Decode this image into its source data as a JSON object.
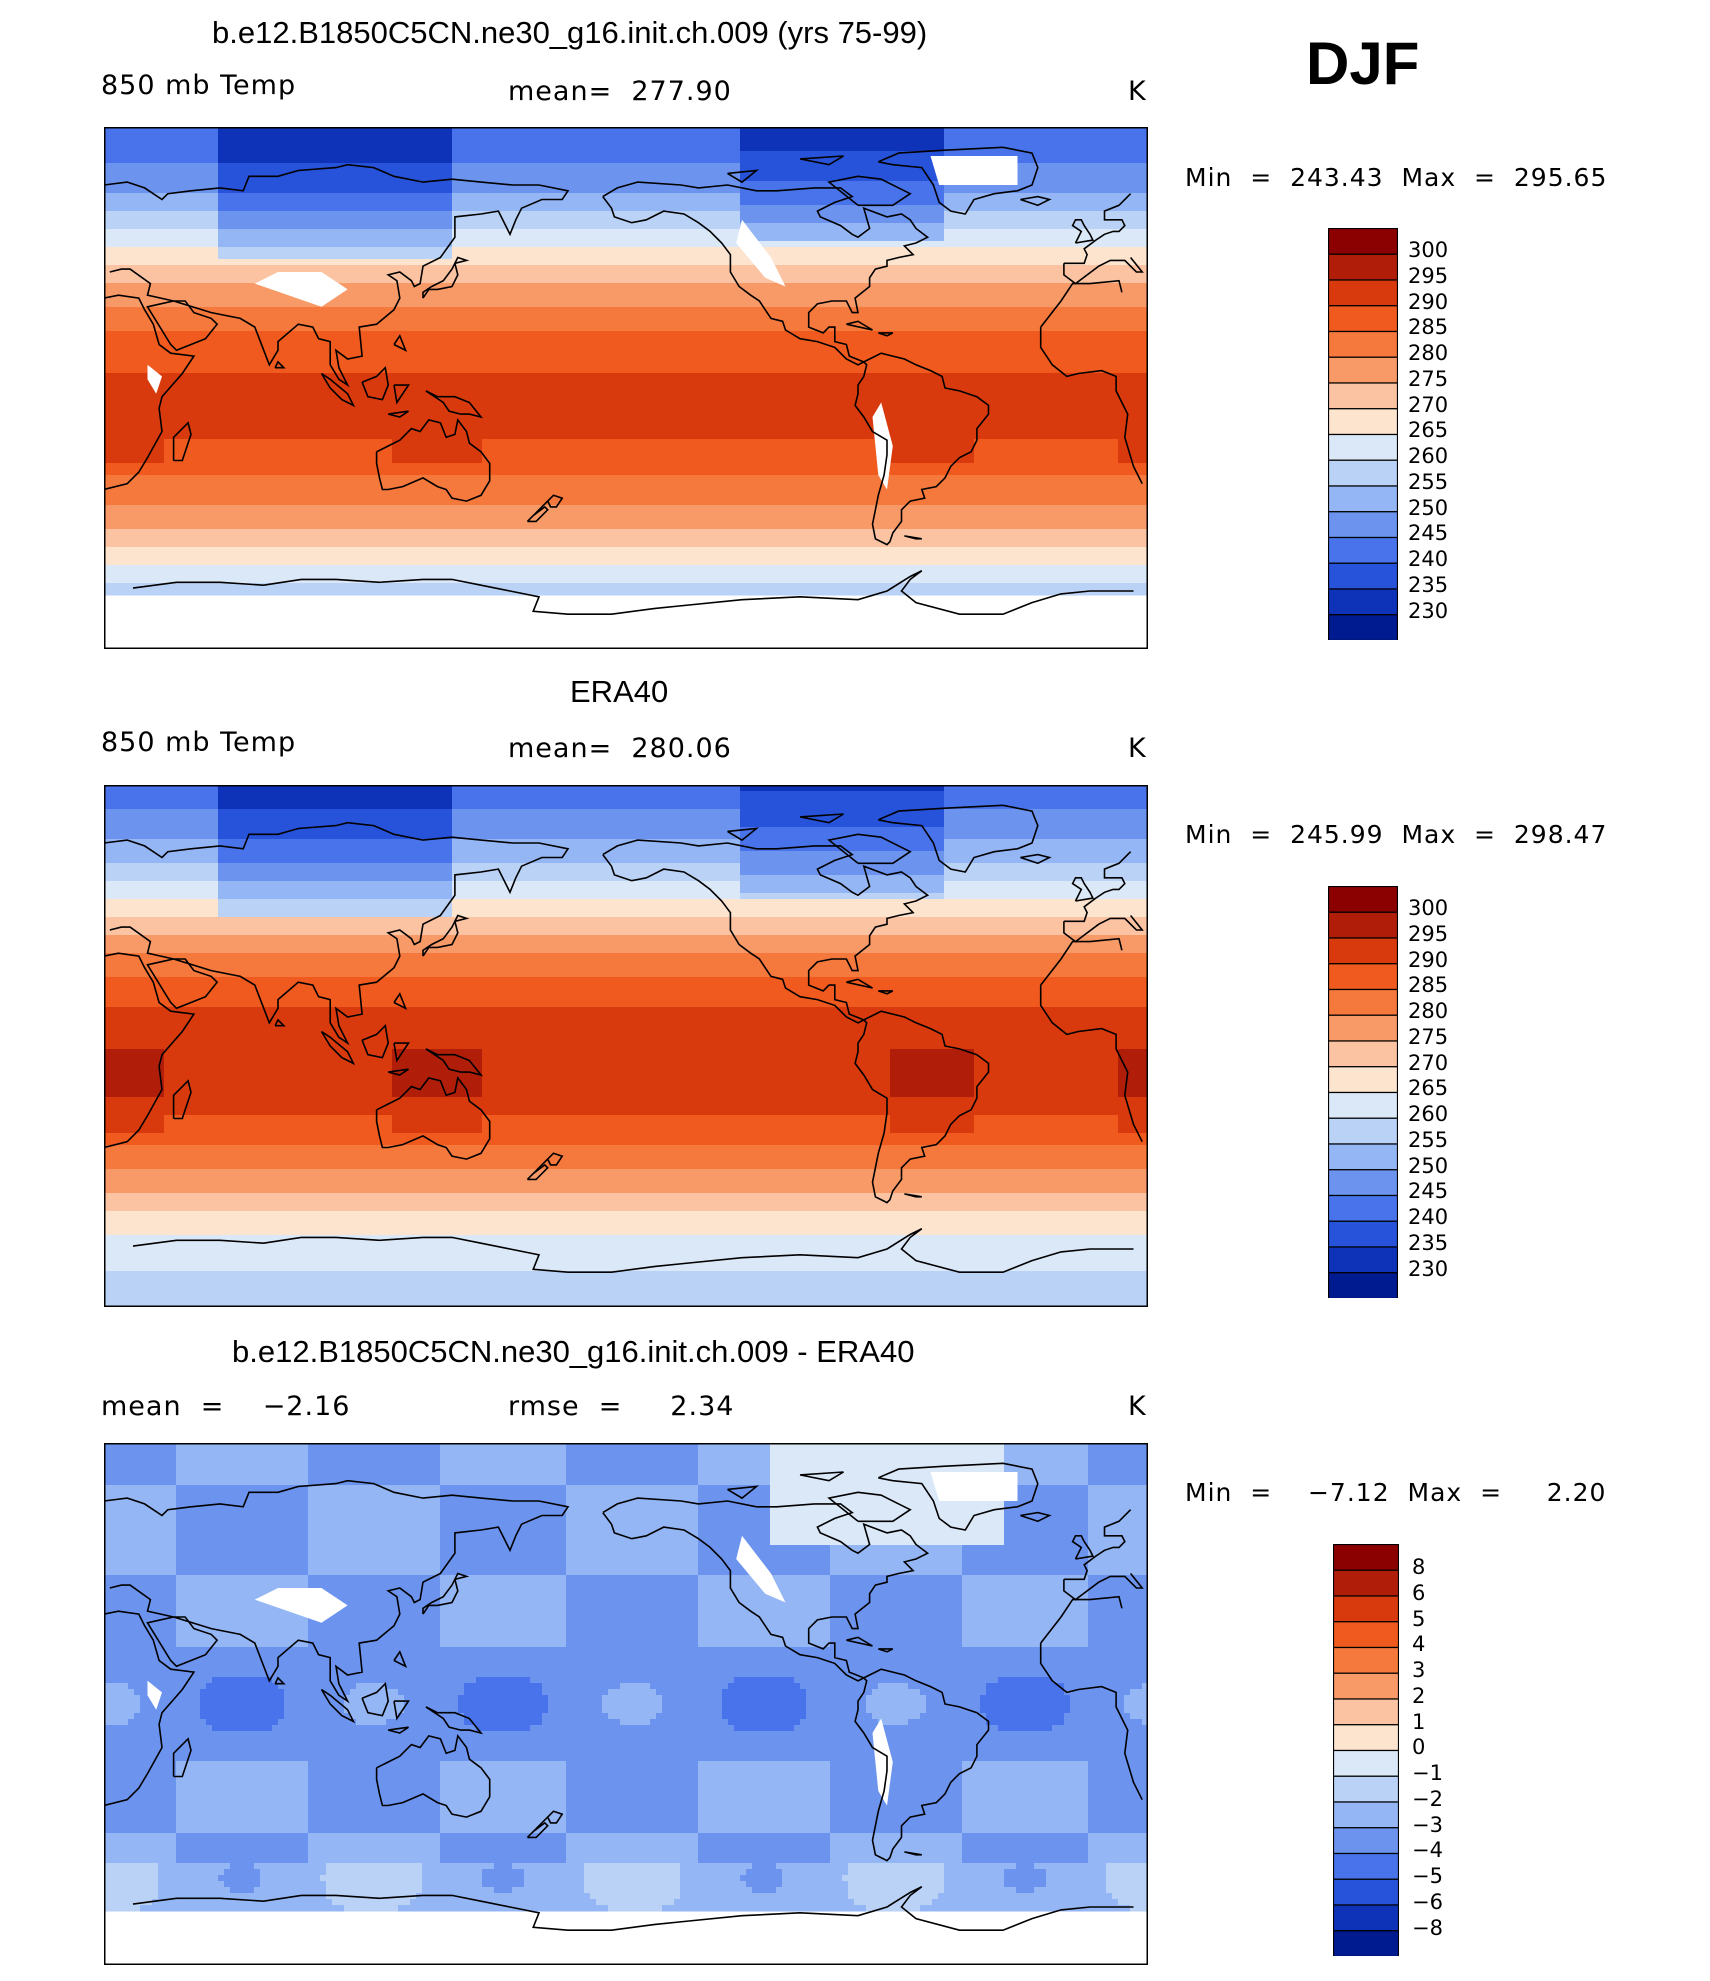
{
  "season": "DJF",
  "panels": [
    {
      "id": "model",
      "title": "b.e12.B1850C5CN.ne30_g16.init.ch.009 (yrs 75-99)",
      "left_label": "850 mb Temp",
      "center_label": "mean=  277.90",
      "units": "K",
      "min_max": "Min  =  243.43  Max  =  295.65",
      "colorbar_labels": [
        "300",
        "295",
        "290",
        "285",
        "280",
        "275",
        "270",
        "265",
        "260",
        "255",
        "250",
        "245",
        "240",
        "235",
        "230"
      ]
    },
    {
      "id": "obs",
      "title": "ERA40",
      "left_label": "850 mb Temp",
      "center_label": "mean=  280.06",
      "units": "K",
      "min_max": "Min  =  245.99  Max  =  298.47",
      "colorbar_labels": [
        "300",
        "295",
        "290",
        "285",
        "280",
        "275",
        "270",
        "265",
        "260",
        "255",
        "250",
        "245",
        "240",
        "235",
        "230"
      ]
    },
    {
      "id": "diff",
      "title": "b.e12.B1850C5CN.ne30_g16.init.ch.009 - ERA40",
      "left_label": "mean  =    −2.16",
      "center_label": "rmse  =     2.34",
      "units": "K",
      "min_max": "Min  =    −7.12  Max  =     2.20",
      "colorbar_labels": [
        "8",
        "6",
        "5",
        "4",
        "3",
        "2",
        "1",
        "0",
        "−1",
        "−2",
        "−3",
        "−4",
        "−5",
        "−6",
        "−8"
      ]
    }
  ],
  "colors": {
    "palette_warm_to_cold": [
      "#8b0000",
      "#b01e0a",
      "#d93a0d",
      "#f05a1e",
      "#f5783c",
      "#f89a68",
      "#fbc3a2",
      "#fde4cf",
      "#dbe8f8",
      "#bad2f6",
      "#94b6f4",
      "#6c94ef",
      "#4873ea",
      "#2752da",
      "#0e33b8",
      "#001a90"
    ],
    "map_background": "#ffffff",
    "coastline": "#000000"
  }
}
